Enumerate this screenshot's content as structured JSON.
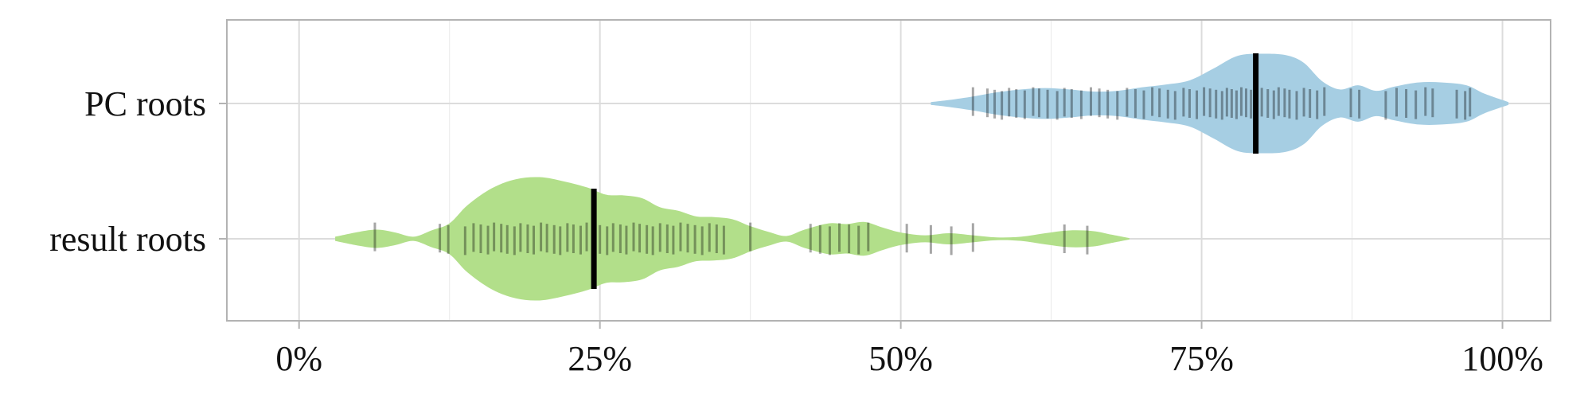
{
  "chart_data": {
    "type": "violin",
    "orientation": "horizontal",
    "categories": [
      "PC roots",
      "result roots"
    ],
    "x_ticks": [
      "0%",
      "25%",
      "50%",
      "75%",
      "100%"
    ],
    "x_tick_values": [
      0,
      25,
      50,
      75,
      100
    ],
    "xlim": [
      -6,
      104
    ],
    "grid": true,
    "title": "",
    "xlabel": "",
    "ylabel": "",
    "series": [
      {
        "category": "PC roots",
        "color": "#a6cee3",
        "median": 79.5,
        "range": [
          52.5,
          100.5
        ],
        "density": [
          [
            52.5,
            0.02
          ],
          [
            54,
            0.05
          ],
          [
            56,
            0.1
          ],
          [
            58,
            0.16
          ],
          [
            60,
            0.2
          ],
          [
            62,
            0.22
          ],
          [
            64,
            0.2
          ],
          [
            66,
            0.17
          ],
          [
            68,
            0.18
          ],
          [
            70,
            0.23
          ],
          [
            72,
            0.27
          ],
          [
            74,
            0.33
          ],
          [
            76,
            0.5
          ],
          [
            78,
            0.68
          ],
          [
            80,
            0.71
          ],
          [
            82,
            0.69
          ],
          [
            83.5,
            0.58
          ],
          [
            85,
            0.32
          ],
          [
            86.5,
            0.2
          ],
          [
            88,
            0.26
          ],
          [
            89.5,
            0.18
          ],
          [
            91,
            0.24
          ],
          [
            93,
            0.3
          ],
          [
            95,
            0.3
          ],
          [
            97,
            0.26
          ],
          [
            98.5,
            0.14
          ],
          [
            100.5,
            0.02
          ]
        ],
        "points": [
          56,
          57.2,
          57.8,
          58.4,
          59,
          59.6,
          60.3,
          61,
          61.5,
          62.2,
          63,
          63.6,
          64.2,
          65,
          65.8,
          66.5,
          67.2,
          68,
          68.8,
          69.5,
          70.2,
          70.9,
          71.5,
          72.2,
          72.8,
          73.5,
          74,
          74.6,
          75.2,
          75.7,
          76.2,
          76.7,
          77.1,
          77.5,
          77.9,
          78.3,
          78.7,
          79.1,
          79.5,
          80,
          80.5,
          81,
          81.4,
          81.9,
          82.3,
          82.9,
          83.5,
          84,
          84.6,
          85.2,
          87.4,
          88.1,
          90.3,
          91.2,
          92,
          92.8,
          93.6,
          94.2,
          96.2,
          96.9,
          97.3
        ]
      },
      {
        "category": "result roots",
        "color": "#b2df8a",
        "median": 24.5,
        "range": [
          3,
          69
        ],
        "density": [
          [
            3,
            0.03
          ],
          [
            5,
            0.1
          ],
          [
            6.5,
            0.13
          ],
          [
            8,
            0.09
          ],
          [
            9.5,
            0.03
          ],
          [
            11,
            0.12
          ],
          [
            12.5,
            0.22
          ],
          [
            14,
            0.48
          ],
          [
            16,
            0.72
          ],
          [
            18,
            0.85
          ],
          [
            20,
            0.88
          ],
          [
            22,
            0.82
          ],
          [
            24,
            0.73
          ],
          [
            25.5,
            0.63
          ],
          [
            27,
            0.62
          ],
          [
            28.5,
            0.58
          ],
          [
            30,
            0.45
          ],
          [
            31.5,
            0.4
          ],
          [
            33,
            0.32
          ],
          [
            34.5,
            0.31
          ],
          [
            36,
            0.28
          ],
          [
            37.5,
            0.18
          ],
          [
            39,
            0.1
          ],
          [
            40.5,
            0.04
          ],
          [
            42,
            0.13
          ],
          [
            44,
            0.22
          ],
          [
            45.5,
            0.21
          ],
          [
            47,
            0.24
          ],
          [
            48.5,
            0.16
          ],
          [
            50,
            0.09
          ],
          [
            52,
            0.05
          ],
          [
            54,
            0.08
          ],
          [
            56,
            0.05
          ],
          [
            58,
            0.02
          ],
          [
            60,
            0.03
          ],
          [
            62,
            0.08
          ],
          [
            64,
            0.12
          ],
          [
            66,
            0.11
          ],
          [
            67.5,
            0.06
          ],
          [
            69,
            0.01
          ]
        ],
        "points": [
          6.3,
          11.7,
          12.4,
          13.8,
          14.5,
          15.1,
          15.7,
          16.2,
          16.8,
          17.3,
          17.9,
          18.4,
          19,
          19.5,
          20.1,
          20.6,
          21.2,
          21.7,
          22.3,
          22.8,
          23.4,
          23.9,
          24.5,
          25,
          25.6,
          26.1,
          26.7,
          27.2,
          27.8,
          28.3,
          28.9,
          29.4,
          30,
          30.6,
          31.1,
          31.7,
          32.3,
          32.9,
          33.5,
          34.1,
          34.7,
          35.3,
          37.5,
          42.5,
          43.3,
          44.1,
          44.9,
          45.7,
          46.5,
          47.3,
          50.5,
          52.5,
          54.2,
          56,
          63.6,
          65.5
        ]
      }
    ]
  }
}
